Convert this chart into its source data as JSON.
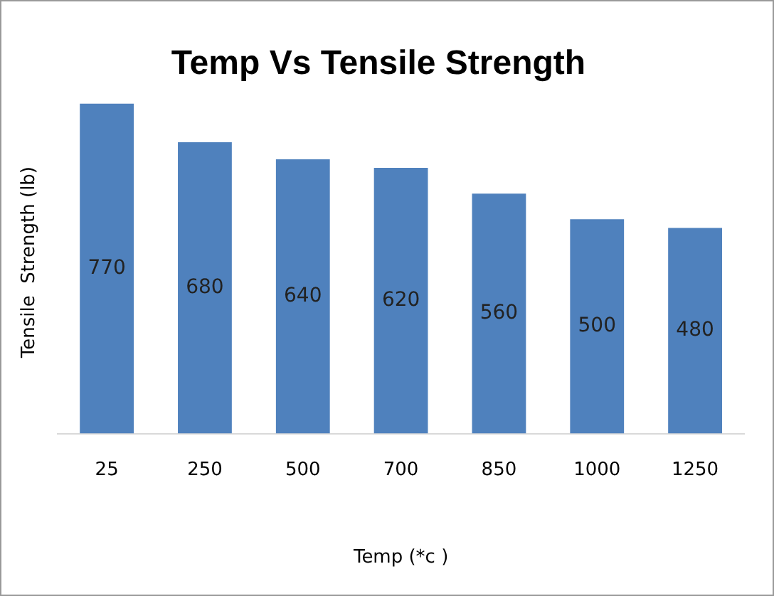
{
  "chart_data": {
    "type": "bar",
    "title": "Temp Vs Tensile Strength",
    "xlabel": "Temp (*c )",
    "ylabel": "Tensile  Strength (lb)",
    "categories": [
      "25",
      "250",
      "500",
      "700",
      "850",
      "1000",
      "1250"
    ],
    "values": [
      770,
      680,
      640,
      620,
      560,
      500,
      480
    ],
    "color": "#4f81bd",
    "data_labels": true,
    "grid": false,
    "legend": false,
    "tick_labels": "x"
  }
}
